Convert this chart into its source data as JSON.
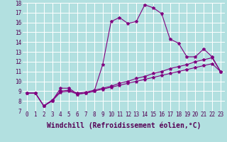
{
  "xlabel": "Windchill (Refroidissement éolien,°C)",
  "background_color": "#b2e0e0",
  "line_color": "#800080",
  "xlim": [
    -0.5,
    23.5
  ],
  "ylim": [
    7,
    18
  ],
  "xticks": [
    0,
    1,
    2,
    3,
    4,
    5,
    6,
    7,
    8,
    9,
    10,
    11,
    12,
    13,
    14,
    15,
    16,
    17,
    18,
    19,
    20,
    21,
    22,
    23
  ],
  "yticks": [
    7,
    8,
    9,
    10,
    11,
    12,
    13,
    14,
    15,
    16,
    17,
    18
  ],
  "series": [
    [
      8.8,
      8.8,
      7.5,
      8.0,
      9.3,
      9.3,
      8.7,
      8.8,
      9.0,
      11.7,
      16.1,
      16.5,
      15.9,
      16.1,
      17.8,
      17.5,
      16.9,
      14.3,
      13.9,
      12.5,
      12.5,
      13.3,
      12.5,
      11.0
    ],
    [
      8.8,
      8.8,
      7.5,
      8.1,
      9.0,
      9.1,
      8.8,
      8.9,
      9.1,
      9.3,
      9.5,
      9.8,
      10.0,
      10.3,
      10.5,
      10.8,
      11.0,
      11.3,
      11.5,
      11.7,
      12.0,
      12.2,
      12.4,
      11.0
    ],
    [
      8.8,
      8.8,
      7.5,
      8.0,
      8.9,
      9.0,
      8.7,
      8.8,
      9.0,
      9.2,
      9.4,
      9.6,
      9.8,
      10.0,
      10.2,
      10.4,
      10.6,
      10.8,
      11.0,
      11.2,
      11.4,
      11.6,
      11.8,
      11.0
    ]
  ],
  "grid_color": "#ffffff",
  "tick_fontsize": 5.5,
  "xlabel_fontsize": 7.0
}
